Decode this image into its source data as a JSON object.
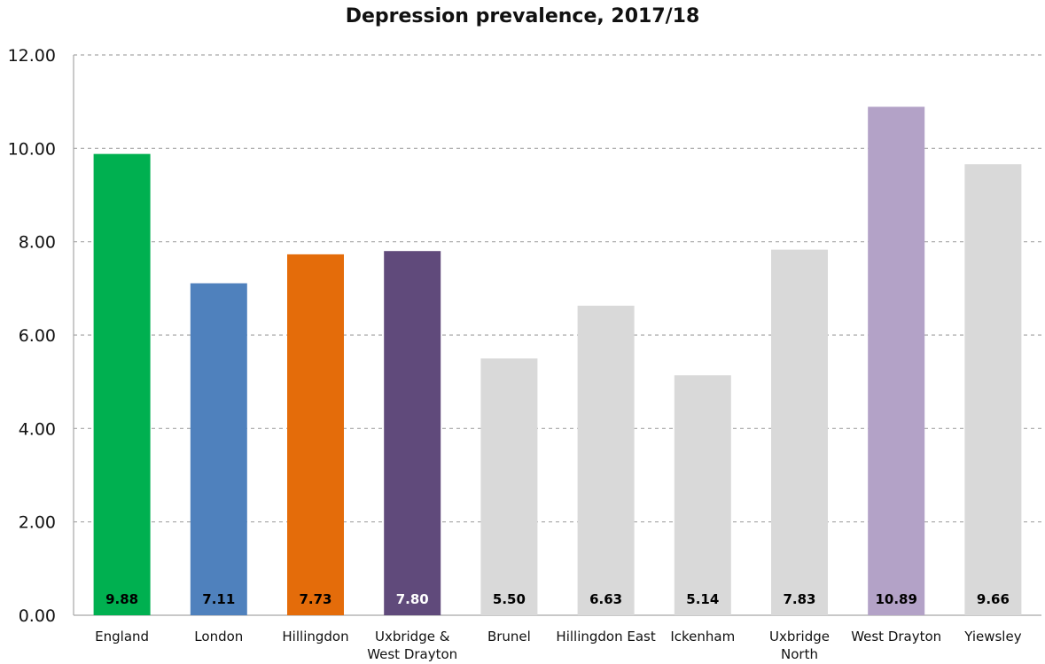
{
  "chart_data": {
    "type": "bar",
    "title": "Depression prevalence, 2017/18",
    "xlabel": "",
    "ylabel": "",
    "categories": [
      "England",
      "London",
      "Hillingdon",
      "Uxbridge & West Drayton",
      "Brunel",
      "Hillingdon East",
      "Ickenham",
      "Uxbridge North",
      "West Drayton",
      "Yiewsley"
    ],
    "category_lines": [
      [
        "England"
      ],
      [
        "London"
      ],
      [
        "Hillingdon"
      ],
      [
        "Uxbridge &",
        "West Drayton"
      ],
      [
        "Brunel"
      ],
      [
        "Hillingdon East"
      ],
      [
        "Ickenham"
      ],
      [
        "Uxbridge",
        "North"
      ],
      [
        "West Drayton"
      ],
      [
        "Yiewsley"
      ]
    ],
    "values": [
      9.88,
      7.11,
      7.73,
      7.8,
      5.5,
      6.63,
      5.14,
      7.83,
      10.89,
      9.66
    ],
    "value_labels": [
      "9.88",
      "7.11",
      "7.73",
      "7.80",
      "5.50",
      "6.63",
      "5.14",
      "7.83",
      "10.89",
      "9.66"
    ],
    "colors": [
      "#00b050",
      "#4f81bd",
      "#e46c0a",
      "#604a7b",
      "#d9d9d9",
      "#d9d9d9",
      "#d9d9d9",
      "#d9d9d9",
      "#b3a2c7",
      "#d9d9d9"
    ],
    "label_colors": [
      "#000000",
      "#000000",
      "#000000",
      "#ffffff",
      "#000000",
      "#000000",
      "#000000",
      "#000000",
      "#000000",
      "#000000"
    ],
    "ylim": [
      0,
      12
    ],
    "yticks": [
      "0.00",
      "2.00",
      "4.00",
      "6.00",
      "8.00",
      "10.00",
      "12.00"
    ],
    "ytick_values": [
      0,
      2,
      4,
      6,
      8,
      10,
      12
    ],
    "grid": true,
    "legend": "none"
  }
}
